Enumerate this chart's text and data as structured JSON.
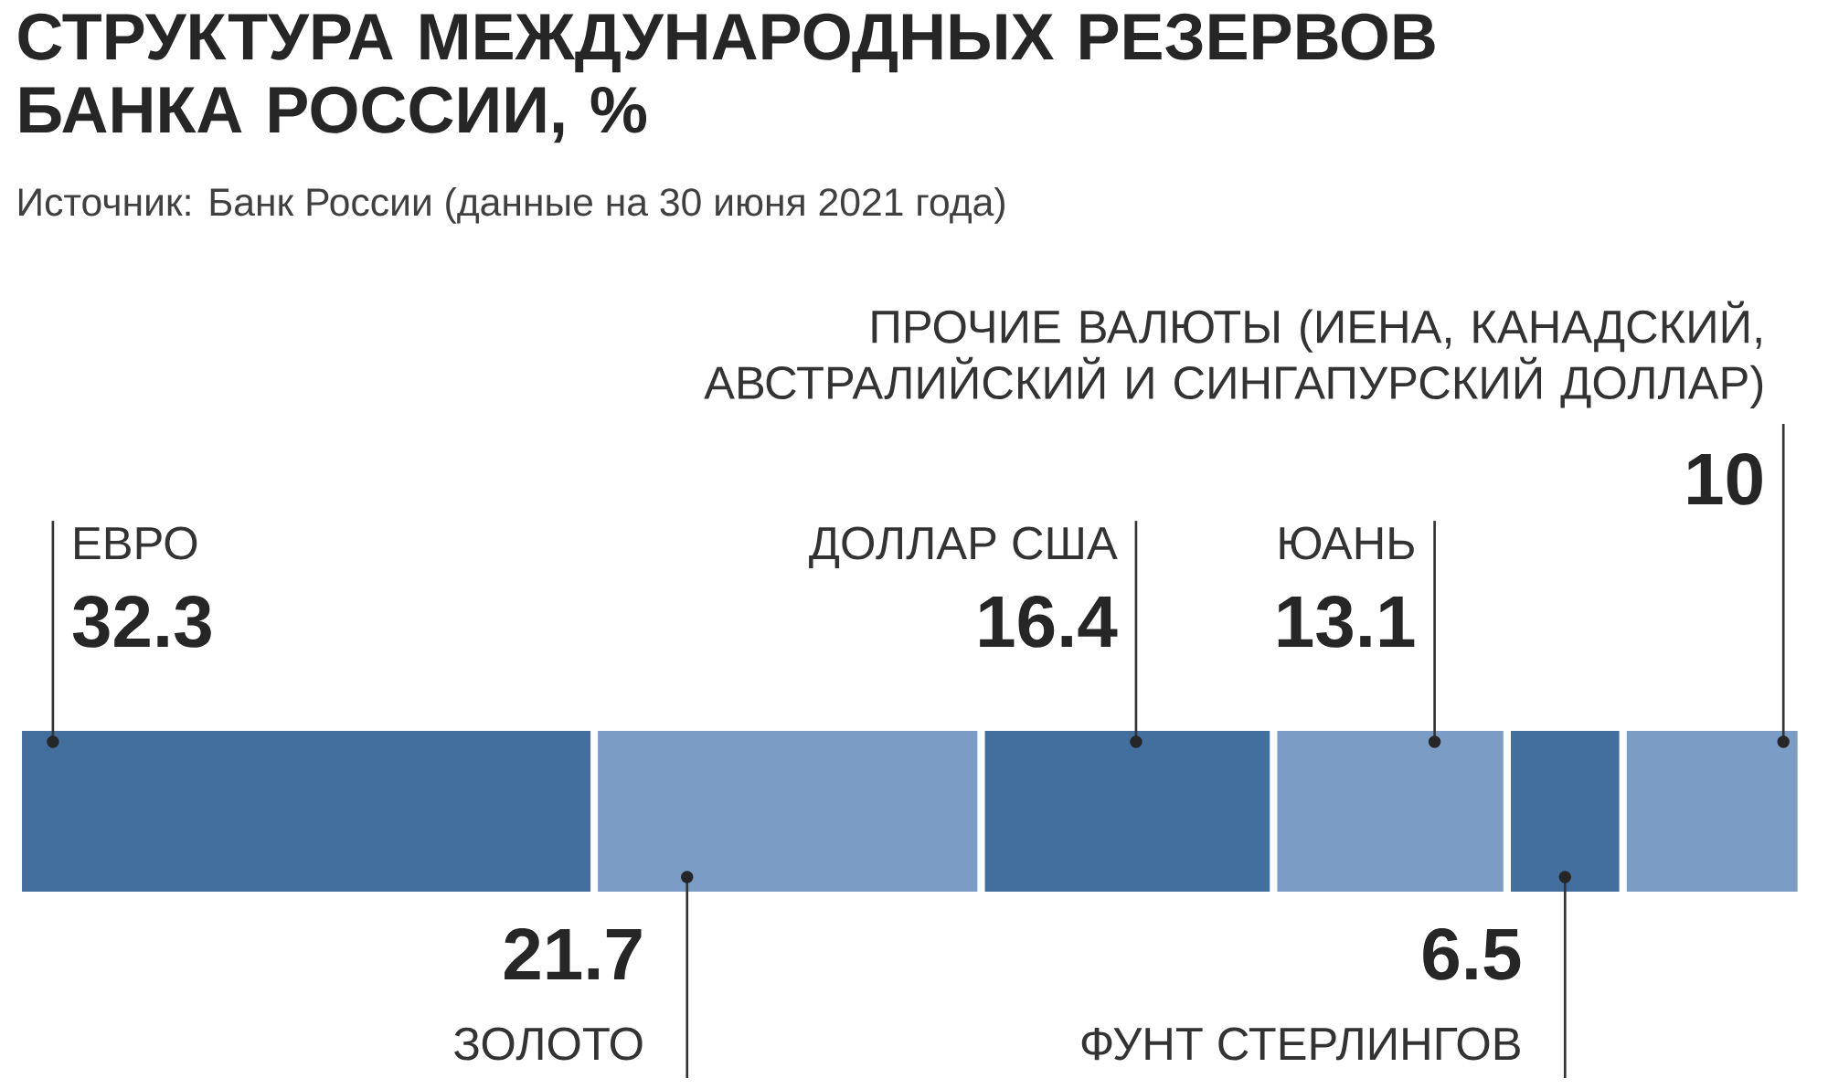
{
  "chart_data": {
    "type": "bar",
    "orientation": "horizontal",
    "stacked": true,
    "title": "СТРУКТУРА МЕЖДУНАРОДНЫХ РЕЗЕРВОВ БАНКА РОССИИ, %",
    "subtitle": "Источник: Банк России (данные на 30 июня 2021 года)",
    "categories": [
      null
    ],
    "data_labels": true,
    "series": [
      {
        "name": "ЕВРО",
        "color": "#436f9e",
        "values": [
          32.3
        ]
      },
      {
        "name": "ЗОЛОТО",
        "color": "#7a9cc5",
        "values": [
          21.7
        ]
      },
      {
        "name": "ДОЛЛАР США",
        "color": "#436f9e",
        "values": [
          16.4
        ]
      },
      {
        "name": "ЮАНЬ",
        "color": "#7a9cc5",
        "values": [
          13.1
        ]
      },
      {
        "name": "ФУНТ СТЕРЛИНГОВ",
        "color": "#436f9e",
        "values": [
          6.5
        ]
      },
      {
        "name": "ПРОЧИЕ ВАЛЮТЫ (ИЕНА, КАНАДСКИЙ, АВСТРАЛИЙСКИЙ И СИНГАПУРСКИЙ ДОЛЛАР)",
        "color": "#7a9cc5",
        "values": [
          10
        ]
      }
    ]
  }
}
